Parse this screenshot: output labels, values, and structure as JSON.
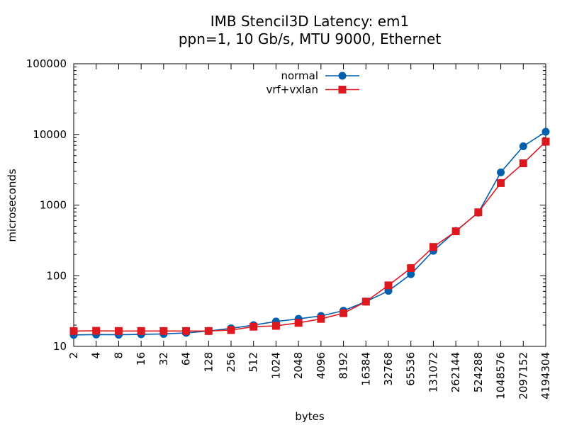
{
  "chart_data": {
    "type": "line",
    "title": [
      "IMB Stencil3D Latency: em1",
      "ppn=1, 10 Gb/s, MTU 9000, Ethernet"
    ],
    "xlabel": "bytes",
    "ylabel": "microseconds",
    "x_scale": "log2",
    "y_scale": "log10",
    "xlim": [
      2,
      4194304
    ],
    "ylim": [
      10,
      100000
    ],
    "grid": false,
    "legend_position": "top-center",
    "x_ticks": [
      "2",
      "4",
      "8",
      "16",
      "32",
      "64",
      "128",
      "256",
      "512",
      "1024",
      "2048",
      "4096",
      "8192",
      "16384",
      "32768",
      "65536",
      "131072",
      "262144",
      "524288",
      "1048576",
      "2097152",
      "4194304"
    ],
    "y_ticks": [
      "10",
      "100",
      "1000",
      "10000",
      "100000"
    ],
    "x": [
      2,
      4,
      8,
      16,
      32,
      64,
      128,
      256,
      512,
      1024,
      2048,
      4096,
      8192,
      16384,
      32768,
      65536,
      131072,
      262144,
      524288,
      1048576,
      2097152,
      4194304
    ],
    "series": [
      {
        "name": "normal",
        "color": "#0060ad",
        "marker": "circle",
        "values": [
          14.5,
          14.7,
          14.6,
          14.8,
          15.0,
          15.5,
          16.5,
          18.0,
          20.0,
          22.5,
          24.5,
          27.0,
          32.0,
          43.0,
          61.0,
          105.0,
          225.0,
          430.0,
          780.0,
          2900.0,
          6800.0,
          10900.0
        ]
      },
      {
        "name": "vrf+vxlan",
        "color": "#dd181f",
        "marker": "square",
        "values": [
          16.5,
          16.6,
          16.5,
          16.5,
          16.5,
          16.5,
          16.5,
          17.0,
          19.0,
          19.5,
          21.5,
          24.5,
          29.5,
          43.0,
          73.0,
          128.0,
          255.0,
          425.0,
          790.0,
          2050.0,
          3900.0,
          7900.0
        ]
      }
    ]
  }
}
